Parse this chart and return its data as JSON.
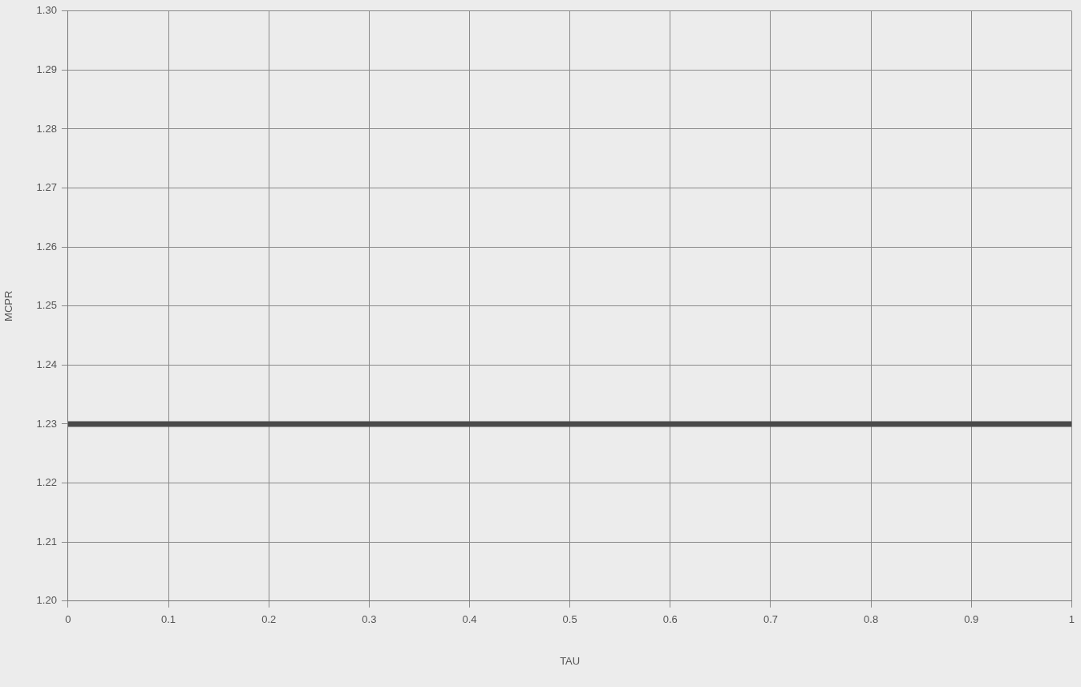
{
  "chart_data": {
    "type": "line",
    "xlabel": "TAU",
    "ylabel": "MCPR",
    "x": [
      0,
      1
    ],
    "series": [
      {
        "color": "#4a4a4a",
        "values": [
          1.23,
          1.23
        ]
      }
    ],
    "xlim": [
      0,
      1
    ],
    "xticks": [
      0,
      0.1,
      0.2,
      0.3,
      0.4,
      0.5,
      0.6,
      0.7,
      0.8,
      0.9,
      1
    ],
    "ylim": [
      1.2,
      1.3
    ],
    "yticks": [
      {
        "value": 1.2,
        "label": "1.20"
      },
      1.21,
      1.22,
      1.23,
      1.24,
      1.25,
      1.26,
      1.27,
      1.28,
      1.29,
      {
        "value": 1.3,
        "label": "1.30"
      }
    ],
    "grid": true,
    "legend": false,
    "marker": "none",
    "line_style": "solid"
  }
}
